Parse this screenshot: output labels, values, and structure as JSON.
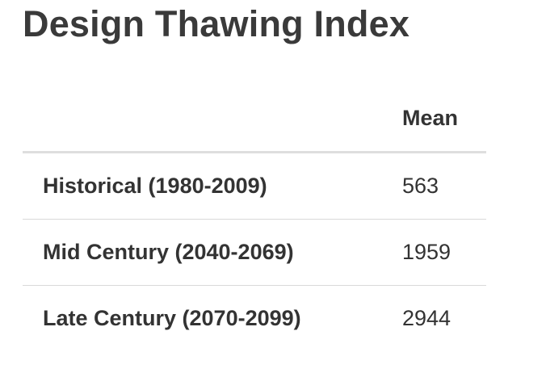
{
  "title": "Design Thawing Index",
  "table": {
    "header": {
      "label_column": "",
      "value_column": "Mean"
    },
    "rows": [
      {
        "label": "Historical (1980-2009)",
        "value": "563"
      },
      {
        "label": "Mid Century (2040-2069)",
        "value": "1959"
      },
      {
        "label": "Late Century (2070-2099)",
        "value": "2944"
      }
    ]
  }
}
